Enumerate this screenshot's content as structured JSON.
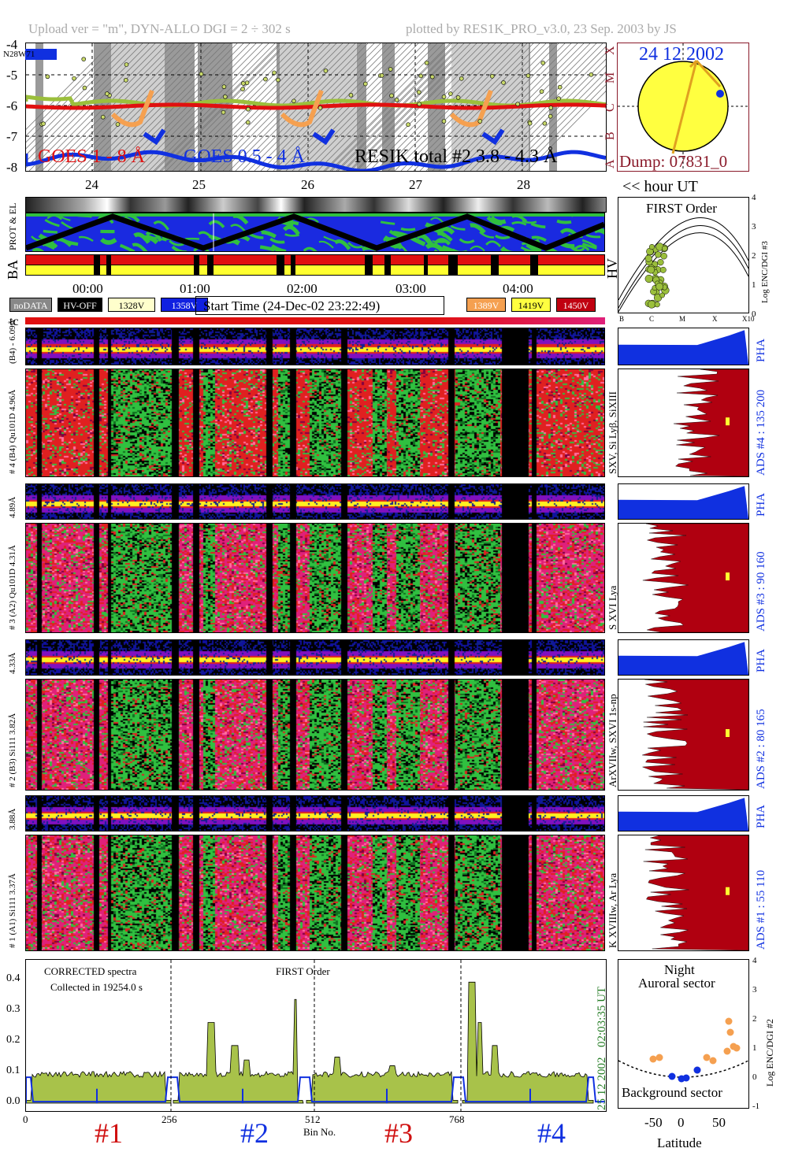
{
  "header": {
    "left": "Upload ver = \"m\", DYN-ALLO DGI =   2 ÷ 302 s",
    "right": "plotted by RES1K_PRO_v3.0, 23 Sep. 2003 by JS"
  },
  "goes": {
    "flag": "N28W71",
    "y_ticks": [
      "-4",
      "-5",
      "-6",
      "-7",
      "-8"
    ],
    "class_labels": [
      "X",
      "M",
      "C",
      "B",
      "A"
    ],
    "legend": [
      "GOES 1 - 8 Å",
      "GOES 0.5 - 4 Å",
      "RESIK total #2  3.8 - 4.3 Å"
    ],
    "colors": {
      "goes_long": "#e01010",
      "goes_short": "#1030e0",
      "resik": "#9bbf3c",
      "orange": "#f5a050"
    }
  },
  "sun": {
    "date": "24 12 2002",
    "dump": "Dump: 07831_0"
  },
  "time_axis": {
    "day_labels": [
      "24",
      "25",
      "26",
      "27",
      "28"
    ],
    "unit_label": "<< hour UT",
    "hour_labels": [
      "00:00",
      "01:00",
      "02:00",
      "03:00",
      "04:00"
    ]
  },
  "orbit": {
    "left_labels": [
      "PROT & EL",
      "BA"
    ],
    "hv_label": "HV"
  },
  "first_order_plot": {
    "title": "FIRST Order",
    "ylabel": "Log ENC/DGI #3",
    "y_ticks": [
      "4",
      "3",
      "2",
      "1",
      "0"
    ],
    "x_ticks": [
      "B",
      "C",
      "M",
      "X",
      "X10"
    ]
  },
  "legend_chips": {
    "left": [
      {
        "label": "noDATA",
        "bg": "#888888",
        "fg": "#ffffff"
      },
      {
        "label": "HV-OFF",
        "bg": "#000000",
        "fg": "#ffffff"
      },
      {
        "label": "1328V",
        "bg": "#ffffcc",
        "fg": "#000000"
      },
      {
        "label": "1358V",
        "bg": "#1020e0",
        "fg": "#ffffff"
      }
    ],
    "start_time": "Start Time (24-Dec-02 23:22:49)",
    "right": [
      {
        "label": "1389V",
        "bg": "#f5a050",
        "fg": "#ffffff"
      },
      {
        "label": "1419V",
        "bg": "#ffff40",
        "fg": "#000000"
      },
      {
        "label": "1450V",
        "bg": "#c00010",
        "fg": "#ffffff"
      }
    ]
  },
  "tc_label": "tc",
  "channels": [
    {
      "pha_label": "(B4) - 6.09Å",
      "adc_label": "# 4 (B4) Qu101D 4.96Å",
      "element": "SXV, Si Lyβ, SiXIII",
      "ads": "ADS #4 :   135 200",
      "pha": "PHA"
    },
    {
      "pha_label": "4.89Å",
      "adc_label": "# 3 (A2) Qu101D 4.31Å",
      "element": "S XVI Lya",
      "ads": "ADS #3 :   90 160",
      "pha": "PHA"
    },
    {
      "pha_label": "4.33Å",
      "adc_label": "# 2 (B3) Si111 3.82Å",
      "element": "ArXVIIw, SXVI 1s-np",
      "ads": "ADS #2 :   80 165",
      "pha": "PHA"
    },
    {
      "pha_label": "3.88Å",
      "adc_label": "# 1 (A1) Si111 3.37Å",
      "element": "K XVIIIw, Ar Lya",
      "ads": "ADS #1 :   55 110",
      "pha": "PHA"
    }
  ],
  "spectrum": {
    "note1": "CORRECTED spectra",
    "note2": "Collected in 19254.0 s",
    "order": "FIRST Order",
    "time": "02:03:35 UT",
    "date": "25 12 2002",
    "y_ticks": [
      "0.4",
      "0.3",
      "0.2",
      "0.1",
      "0.0"
    ],
    "x_ticks": [
      "0",
      "256",
      "512",
      "768"
    ],
    "xlabel": "Bin No.",
    "numbers": [
      {
        "label": "#1",
        "color": "#d01010"
      },
      {
        "label": "#2",
        "color": "#1030e0"
      },
      {
        "label": "#3",
        "color": "#d01010"
      },
      {
        "label": "#4",
        "color": "#1030e0"
      }
    ]
  },
  "latitude_plot": {
    "title1": "Night",
    "title2": "Auroral sector",
    "bottom": "Background sector",
    "ylabel": "Log ENC/DGI #2",
    "xlabel": "Latitude",
    "x_ticks": [
      "-50",
      "0",
      "50"
    ],
    "y_ticks": [
      "4",
      "3",
      "2",
      "1",
      "0",
      "-1"
    ]
  }
}
